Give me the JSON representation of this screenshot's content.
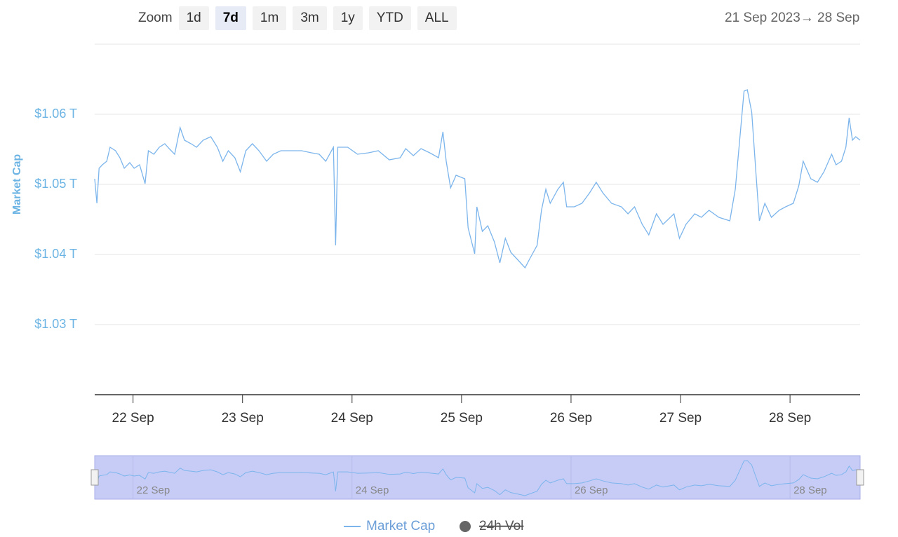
{
  "toolbar": {
    "zoom_label": "Zoom",
    "buttons": [
      {
        "label": "1d",
        "selected": false
      },
      {
        "label": "7d",
        "selected": true
      },
      {
        "label": "1m",
        "selected": false
      },
      {
        "label": "3m",
        "selected": false
      },
      {
        "label": "1y",
        "selected": false
      },
      {
        "label": "YTD",
        "selected": false
      },
      {
        "label": "ALL",
        "selected": false
      }
    ],
    "range_from": "21 Sep 2023",
    "range_arrow": "→",
    "range_to": "28 Sep"
  },
  "chart_data": {
    "type": "line",
    "ylabel": "Market Cap",
    "x": [
      21.65,
      21.67,
      21.69,
      21.72,
      21.76,
      21.79,
      21.84,
      21.88,
      21.92,
      21.97,
      22.01,
      22.06,
      22.11,
      22.14,
      22.19,
      22.24,
      22.29,
      22.33,
      22.38,
      22.43,
      22.47,
      22.53,
      22.58,
      22.64,
      22.71,
      22.77,
      22.82,
      22.87,
      22.93,
      22.98,
      23.03,
      23.09,
      23.15,
      23.22,
      23.28,
      23.35,
      23.44,
      23.54,
      23.63,
      23.7,
      23.76,
      23.83,
      23.85,
      23.87,
      23.96,
      24.05,
      24.15,
      24.24,
      24.34,
      24.44,
      24.49,
      24.56,
      24.63,
      24.71,
      24.79,
      24.83,
      24.86,
      24.9,
      24.95,
      25.03,
      25.06,
      25.12,
      25.14,
      25.19,
      25.24,
      25.3,
      25.35,
      25.4,
      25.45,
      25.51,
      25.58,
      25.62,
      25.69,
      25.73,
      25.77,
      25.81,
      25.88,
      25.93,
      25.96,
      26.03,
      26.1,
      26.17,
      26.23,
      26.29,
      26.37,
      26.46,
      26.52,
      26.58,
      26.65,
      26.71,
      26.78,
      26.84,
      26.94,
      26.99,
      27.05,
      27.13,
      27.19,
      27.26,
      27.35,
      27.45,
      27.5,
      27.54,
      27.58,
      27.61,
      27.65,
      27.69,
      27.72,
      27.77,
      27.83,
      27.9,
      27.96,
      28.03,
      28.08,
      28.12,
      28.19,
      28.25,
      28.31,
      28.38,
      28.42,
      28.47,
      28.51,
      28.54,
      28.57,
      28.6,
      28.64
    ],
    "series": [
      {
        "name": "Market Cap",
        "color": "#7cb5ec",
        "values": [
          1.0508,
          1.0473,
          1.0523,
          1.0528,
          1.0533,
          1.0553,
          1.0548,
          1.0538,
          1.0523,
          1.0531,
          1.0523,
          1.0528,
          1.0501,
          1.0548,
          1.0543,
          1.0553,
          1.0558,
          1.0551,
          1.0543,
          1.0581,
          1.0563,
          1.0558,
          1.0553,
          1.0563,
          1.0568,
          1.0553,
          1.0533,
          1.0548,
          1.0538,
          1.0518,
          1.0548,
          1.0558,
          1.0548,
          1.0533,
          1.0543,
          1.0548,
          1.0548,
          1.0548,
          1.0545,
          1.0543,
          1.0533,
          1.0553,
          1.0413,
          1.0553,
          1.0553,
          1.0543,
          1.0545,
          1.0548,
          1.0535,
          1.0538,
          1.0551,
          1.0541,
          1.0551,
          1.0545,
          1.0538,
          1.0575,
          1.0533,
          1.0495,
          1.0513,
          1.0508,
          1.0438,
          1.0401,
          1.0468,
          1.0433,
          1.0441,
          1.0418,
          1.0388,
          1.0423,
          1.0403,
          1.0393,
          1.0381,
          1.0393,
          1.0413,
          1.0463,
          1.0493,
          1.0473,
          1.0493,
          1.0503,
          1.0468,
          1.0468,
          1.0473,
          1.0488,
          1.0503,
          1.0488,
          1.0473,
          1.0468,
          1.0458,
          1.0468,
          1.0443,
          1.0428,
          1.0458,
          1.0443,
          1.0458,
          1.0423,
          1.0443,
          1.0458,
          1.0453,
          1.0463,
          1.0453,
          1.0448,
          1.0493,
          1.0563,
          1.0633,
          1.0635,
          1.0603,
          1.0513,
          1.0448,
          1.0473,
          1.0453,
          1.0463,
          1.0468,
          1.0473,
          1.0498,
          1.0533,
          1.0508,
          1.0503,
          1.0518,
          1.0543,
          1.0528,
          1.0533,
          1.0553,
          1.0595,
          1.0563,
          1.0568,
          1.0563
        ]
      }
    ],
    "hidden_series": [
      {
        "name": "24h Vol",
        "color": "#666666"
      }
    ],
    "xlim": [
      21.65,
      28.64
    ],
    "xticks": [
      {
        "value": 22,
        "label": "22 Sep"
      },
      {
        "value": 23,
        "label": "23 Sep"
      },
      {
        "value": 24,
        "label": "24 Sep"
      },
      {
        "value": 25,
        "label": "25 Sep"
      },
      {
        "value": 26,
        "label": "26 Sep"
      },
      {
        "value": 27,
        "label": "27 Sep"
      },
      {
        "value": 28,
        "label": "28 Sep"
      }
    ],
    "ylim": [
      1.02,
      1.07
    ],
    "yticks": [
      {
        "value": 1.03,
        "label": "$1.03 T"
      },
      {
        "value": 1.04,
        "label": "$1.04 T"
      },
      {
        "value": 1.05,
        "label": "$1.05 T"
      },
      {
        "value": 1.06,
        "label": "$1.06 T"
      }
    ],
    "grid": true,
    "navigator": true,
    "navigator_color": "#c7ccf7"
  }
}
